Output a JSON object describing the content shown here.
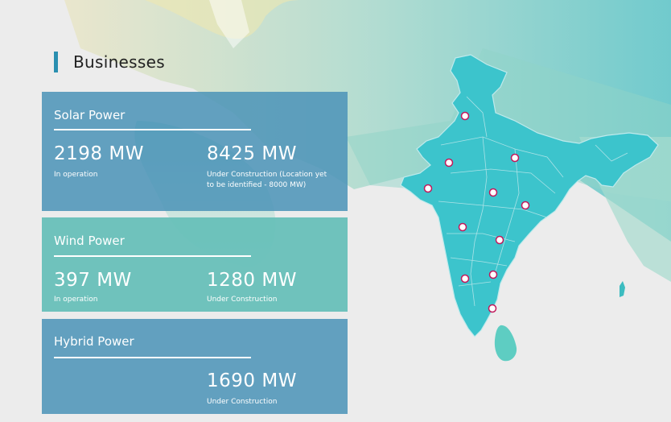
{
  "section_title": "Businesses",
  "businesses": [
    {
      "name": "Solar Power",
      "primary": {
        "value": "2198 MW",
        "label": "In operation"
      },
      "secondary": {
        "value": "8425 MW",
        "label": "Under Construction (Location yet to be identified - 8000 MW)"
      }
    },
    {
      "name": "Wind Power",
      "primary": {
        "value": "397 MW",
        "label": "In operation"
      },
      "secondary": {
        "value": "1280 MW",
        "label": "Under Construction"
      }
    },
    {
      "name": "Hybrid Power",
      "secondary": {
        "value": "1690 MW",
        "label": "Under Construction"
      }
    }
  ],
  "colors": {
    "solar_card": "#4f95b8",
    "wind_card": "#62beb7",
    "hybrid_card": "#4f95b8",
    "accent_bar": "#2a8fb0",
    "india_fill": "#3cc4cc",
    "marker_fill": "#ffffff",
    "marker_stroke": "#c2185b"
  },
  "map": {
    "markers": [
      {
        "region": "Punjab"
      },
      {
        "region": "Rajasthan"
      },
      {
        "region": "Uttar Pradesh"
      },
      {
        "region": "Gujarat"
      },
      {
        "region": "Madhya Pradesh"
      },
      {
        "region": "Chhattisgarh"
      },
      {
        "region": "Maharashtra"
      },
      {
        "region": "Telangana"
      },
      {
        "region": "Karnataka"
      },
      {
        "region": "Andhra Pradesh"
      },
      {
        "region": "Tamil Nadu"
      }
    ]
  }
}
